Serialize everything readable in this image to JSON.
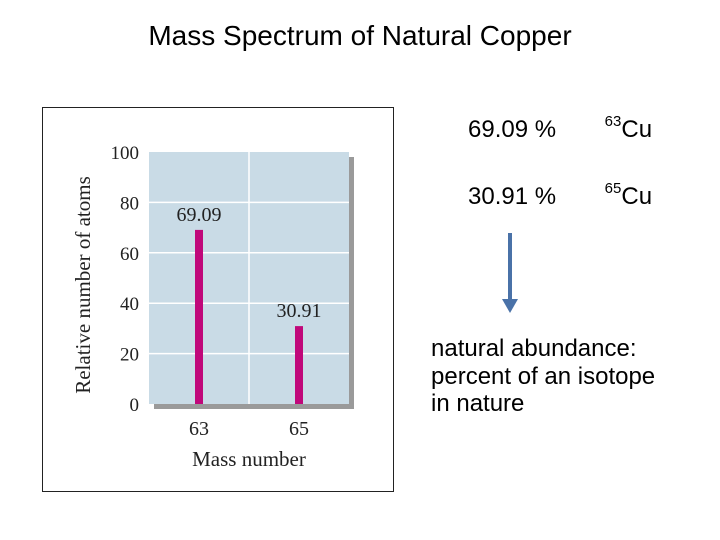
{
  "slide": {
    "title": "Mass Spectrum of Natural Copper",
    "definition_lines": [
      "natural abundance:",
      "percent of an isotope",
      "in nature"
    ]
  },
  "isotopes": [
    {
      "percent": "69.09 %",
      "mass": "63",
      "element": "Cu"
    },
    {
      "percent": "30.91 %",
      "mass": "65",
      "element": "Cu"
    }
  ],
  "colors": {
    "bar": "#c0087a",
    "plot_bg": "#c9dbe6",
    "plot_shadow": "#9a9a9a",
    "grid": "#ffffff",
    "arrow": "#4a72a8"
  },
  "chart_data": {
    "type": "bar",
    "categories": [
      "63",
      "65"
    ],
    "values": [
      69.09,
      30.91
    ],
    "data_labels": [
      "69.09",
      "30.91"
    ],
    "xlabel": "Mass number",
    "ylabel": "Relative number of atoms",
    "ylim": [
      0,
      100
    ],
    "yticks": [
      0,
      20,
      40,
      60,
      80,
      100
    ],
    "grid": true
  }
}
